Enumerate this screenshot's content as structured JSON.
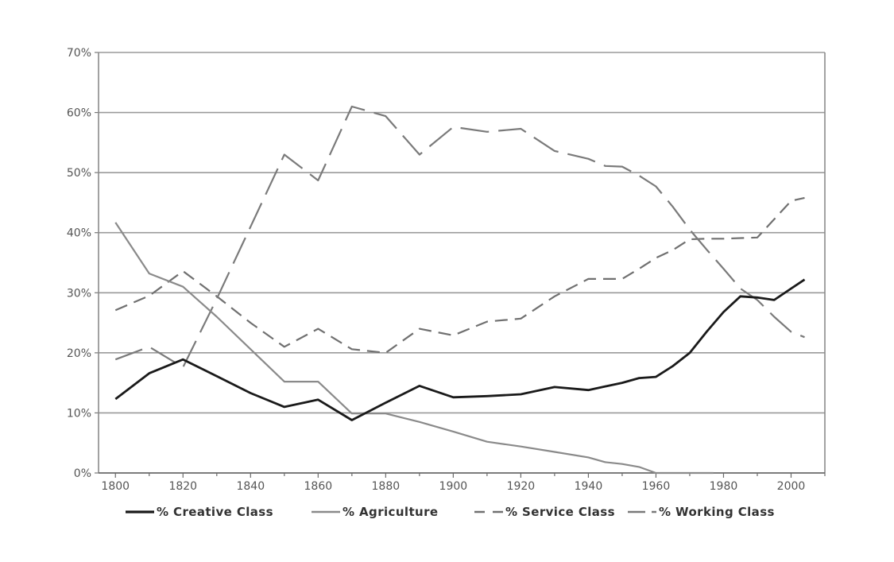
{
  "chart_data": {
    "type": "line",
    "title": "",
    "xlabel": "",
    "ylabel": "",
    "xlim": [
      1795,
      2010
    ],
    "ylim": [
      0,
      70
    ],
    "grid": true,
    "legend_position": "bottom",
    "x_ticks": [
      1800,
      1820,
      1840,
      1860,
      1880,
      1900,
      1920,
      1940,
      1960,
      1980,
      2000
    ],
    "x_tick_labels": [
      "1800",
      "1820",
      "1840",
      "1860",
      "1880",
      "1900",
      "1920",
      "1940",
      "1960",
      "1980",
      "2000"
    ],
    "y_ticks": [
      0,
      10,
      20,
      30,
      40,
      50,
      60,
      70
    ],
    "y_tick_labels": [
      "0%",
      "10%",
      "20%",
      "30%",
      "40%",
      "50%",
      "60%",
      "70%"
    ],
    "series": [
      {
        "name": "% Creative Class",
        "style": "solid",
        "color": "#1a1a1a",
        "width": 2.8,
        "points": [
          [
            1800,
            12.3
          ],
          [
            1810,
            16.6
          ],
          [
            1820,
            18.9
          ],
          [
            1830,
            16.1
          ],
          [
            1840,
            13.3
          ],
          [
            1850,
            11.0
          ],
          [
            1860,
            12.2
          ],
          [
            1870,
            8.8
          ],
          [
            1880,
            11.7
          ],
          [
            1890,
            14.5
          ],
          [
            1900,
            12.6
          ],
          [
            1910,
            12.8
          ],
          [
            1920,
            13.1
          ],
          [
            1930,
            14.3
          ],
          [
            1940,
            13.8
          ],
          [
            1950,
            15.0
          ],
          [
            1955,
            15.8
          ],
          [
            1960,
            16.0
          ],
          [
            1965,
            17.8
          ],
          [
            1970,
            20.0
          ],
          [
            1975,
            23.5
          ],
          [
            1980,
            26.8
          ],
          [
            1985,
            29.4
          ],
          [
            1990,
            29.2
          ],
          [
            1995,
            28.8
          ],
          [
            2000,
            30.7
          ],
          [
            2004,
            32.2
          ]
        ]
      },
      {
        "name": "% Agriculture",
        "style": "solid",
        "color": "#8a8a8a",
        "width": 2.2,
        "points": [
          [
            1800,
            41.7
          ],
          [
            1810,
            33.2
          ],
          [
            1820,
            31.0
          ],
          [
            1830,
            26.0
          ],
          [
            1840,
            20.6
          ],
          [
            1850,
            15.2
          ],
          [
            1860,
            15.2
          ],
          [
            1870,
            9.9
          ],
          [
            1880,
            9.9
          ],
          [
            1890,
            8.5
          ],
          [
            1900,
            6.9
          ],
          [
            1910,
            5.2
          ],
          [
            1920,
            4.4
          ],
          [
            1930,
            3.5
          ],
          [
            1940,
            2.6
          ],
          [
            1945,
            1.8
          ],
          [
            1950,
            1.5
          ],
          [
            1955,
            1.0
          ],
          [
            1960,
            0.0
          ],
          [
            1970,
            0.0
          ],
          [
            1977,
            0.0
          ]
        ]
      },
      {
        "name": "% Service Class",
        "style": "dashed",
        "color": "#707070",
        "width": 2.2,
        "points": [
          [
            1800,
            27.1
          ],
          [
            1810,
            29.5
          ],
          [
            1820,
            33.6
          ],
          [
            1830,
            29.4
          ],
          [
            1840,
            25.0
          ],
          [
            1850,
            21.0
          ],
          [
            1860,
            24.0
          ],
          [
            1870,
            20.6
          ],
          [
            1880,
            20.0
          ],
          [
            1890,
            24.0
          ],
          [
            1900,
            22.9
          ],
          [
            1910,
            25.2
          ],
          [
            1920,
            25.7
          ],
          [
            1930,
            29.4
          ],
          [
            1940,
            32.3
          ],
          [
            1950,
            32.3
          ],
          [
            1955,
            34.0
          ],
          [
            1960,
            35.8
          ],
          [
            1965,
            37.1
          ],
          [
            1970,
            38.9
          ],
          [
            1975,
            39.0
          ],
          [
            1980,
            39.0
          ],
          [
            1990,
            39.2
          ],
          [
            2000,
            45.3
          ],
          [
            2004,
            45.8
          ]
        ]
      },
      {
        "name": "% Working Class",
        "style": "longdash",
        "color": "#7a7a7a",
        "width": 2.2,
        "points": [
          [
            1800,
            18.9
          ],
          [
            1810,
            21.0
          ],
          [
            1820,
            17.6
          ],
          [
            1830,
            29.0
          ],
          [
            1840,
            41.0
          ],
          [
            1850,
            53.0
          ],
          [
            1860,
            48.7
          ],
          [
            1870,
            61.0
          ],
          [
            1880,
            59.4
          ],
          [
            1890,
            53.0
          ],
          [
            1900,
            57.6
          ],
          [
            1910,
            56.8
          ],
          [
            1920,
            57.3
          ],
          [
            1930,
            53.6
          ],
          [
            1940,
            52.3
          ],
          [
            1945,
            51.1
          ],
          [
            1950,
            51.0
          ],
          [
            1955,
            49.5
          ],
          [
            1960,
            47.7
          ],
          [
            1965,
            44.3
          ],
          [
            1970,
            40.5
          ],
          [
            1975,
            37.2
          ],
          [
            1980,
            34.0
          ],
          [
            1985,
            30.7
          ],
          [
            1990,
            28.8
          ],
          [
            1995,
            26.0
          ],
          [
            2000,
            23.5
          ],
          [
            2004,
            22.6
          ]
        ]
      }
    ]
  }
}
